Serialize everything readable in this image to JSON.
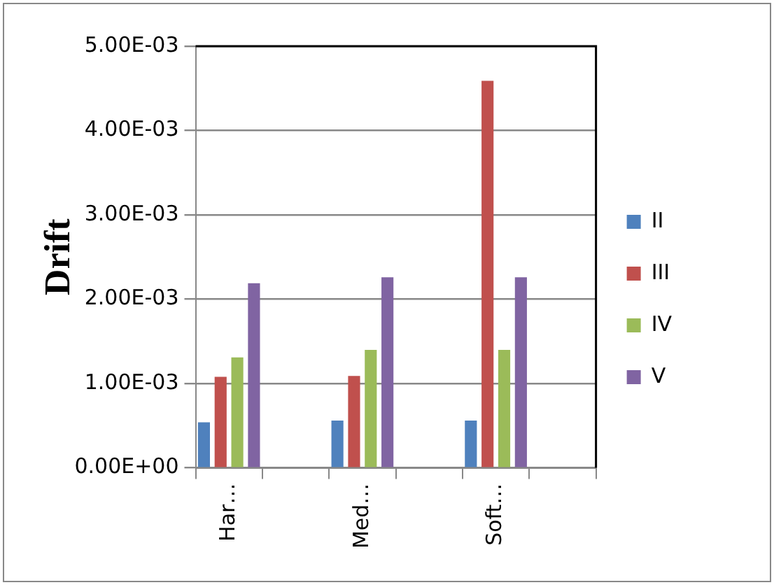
{
  "chart_data": {
    "type": "bar",
    "ylabel": "Drift",
    "categories": [
      "Har…",
      null,
      "Med…",
      null,
      "Soft…",
      null
    ],
    "series": [
      {
        "name": "II",
        "color": "#4f81bd",
        "values": [
          0.00054,
          null,
          0.00056,
          null,
          0.00056,
          null
        ]
      },
      {
        "name": "III",
        "color": "#c0504d",
        "values": [
          0.00108,
          null,
          0.00109,
          null,
          0.00459,
          null
        ]
      },
      {
        "name": "IV",
        "color": "#9bbb59",
        "values": [
          0.00131,
          null,
          0.0014,
          null,
          0.0014,
          null
        ]
      },
      {
        "name": "V",
        "color": "#8064a2",
        "values": [
          0.00219,
          null,
          0.00226,
          null,
          0.00226,
          null
        ]
      }
    ],
    "ylim": [
      0,
      0.005
    ],
    "yticks": [
      {
        "value": 0,
        "label": "0.00E+00"
      },
      {
        "value": 0.001,
        "label": "1.00E-03"
      },
      {
        "value": 0.002,
        "label": "2.00E-03"
      },
      {
        "value": 0.003,
        "label": "3.00E-03"
      },
      {
        "value": 0.004,
        "label": "4.00E-03"
      },
      {
        "value": 0.005,
        "label": "5.00E-03"
      }
    ],
    "grid": "y",
    "legend": "right"
  }
}
